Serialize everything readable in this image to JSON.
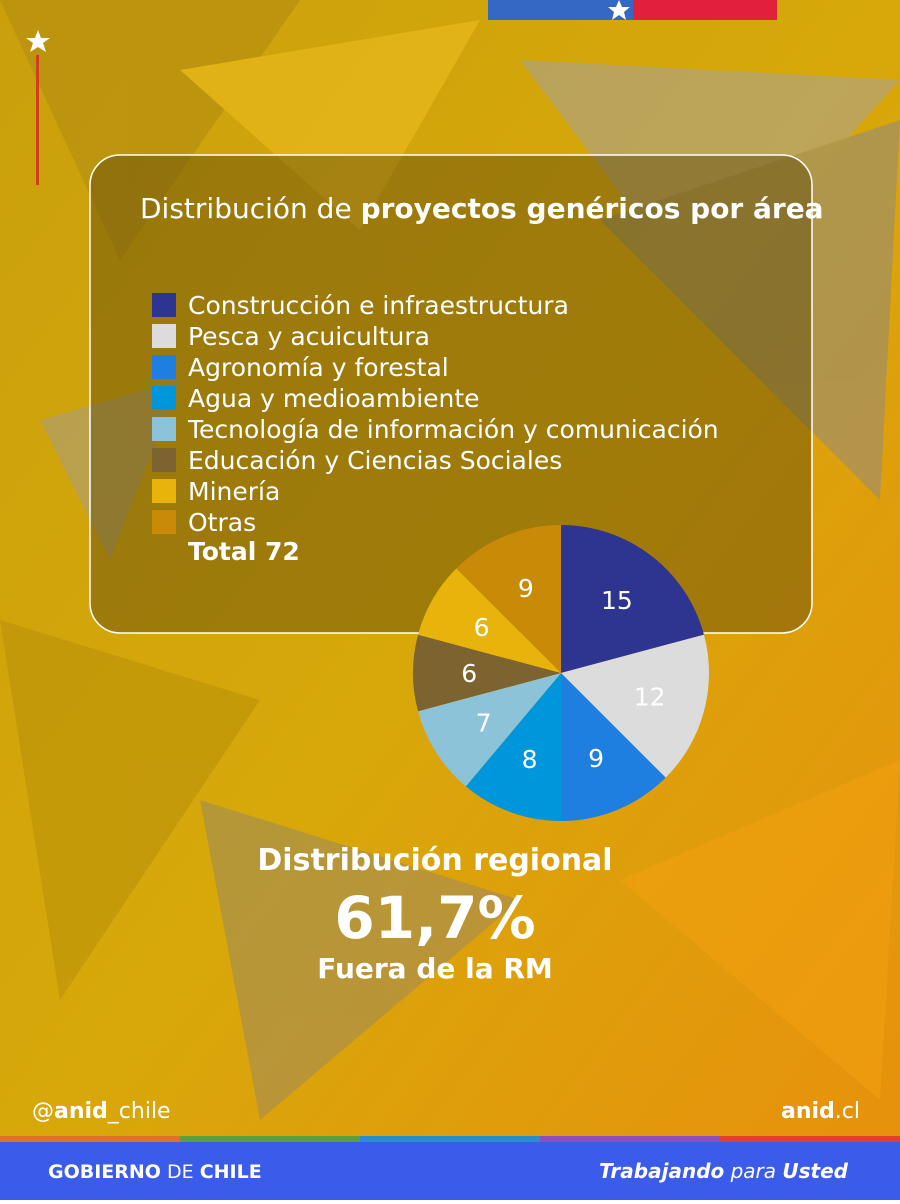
{
  "chart_data": {
    "type": "pie",
    "title_regular": "Distribución de",
    "title_bold": "proyectos genéricos por área",
    "categories": [
      "Construcción e infraestructura",
      "Pesca y acuicultura",
      "Agronomía y forestal",
      "Agua y medioambiente",
      "Tecnología de información y comunicación",
      "Educación y Ciencias Sociales",
      "Minería",
      "Otras"
    ],
    "values": [
      15,
      12,
      9,
      8,
      7,
      6,
      6,
      9
    ],
    "colors": [
      "#2e3591",
      "#dcdcdc",
      "#1e7fe0",
      "#0096dc",
      "#8cc3d8",
      "#7d6330",
      "#e8b30a",
      "#c98a08"
    ],
    "total_label": "Total",
    "total": 72
  },
  "regional": {
    "heading": "Distribución regional",
    "share": "61,7%",
    "caption": "Fuera de la RM"
  },
  "footer": {
    "handle_prefix": "@",
    "handle_bold": "anid",
    "handle_suffix": "_chile",
    "site_bold": "anid",
    "site_suffix": ".cl",
    "gov_1": "GOBIERNO",
    "gov_2": "DE",
    "gov_3": "CHILE",
    "slogan_1": "Trabajando",
    "slogan_2": "para",
    "slogan_3": "Usted"
  }
}
